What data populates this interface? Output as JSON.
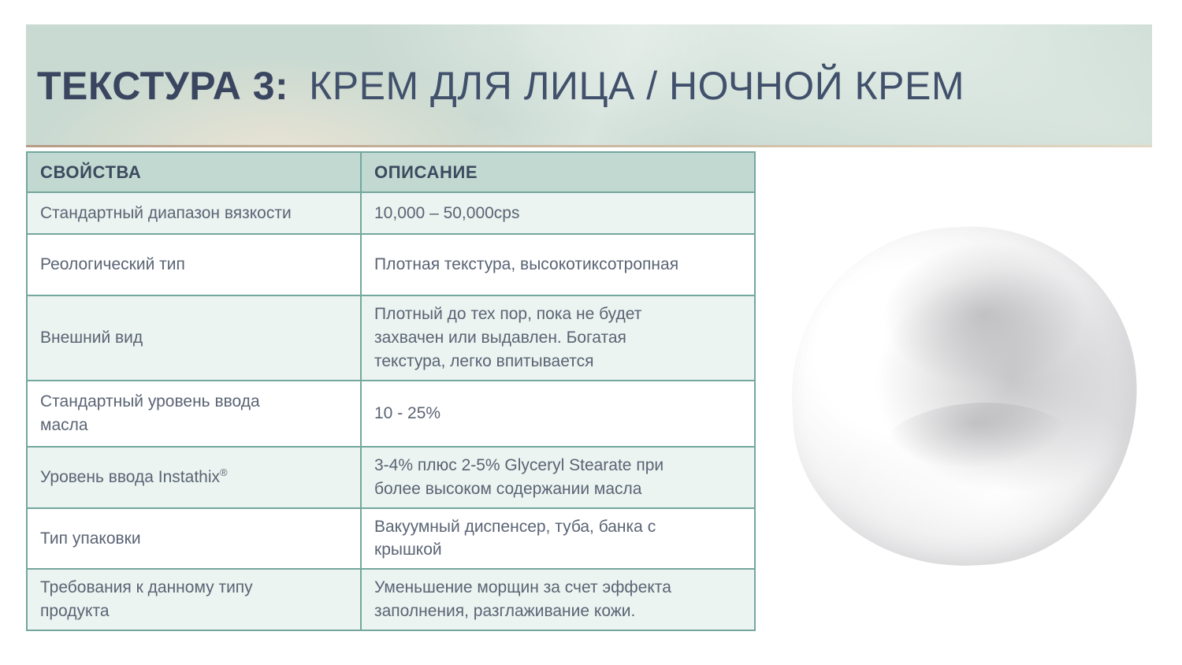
{
  "slide": {
    "title_bold": "ТЕКСТУРА 3:",
    "title_rest": "КРЕМ ДЛЯ ЛИЦА / НОЧНОЙ КРЕМ"
  },
  "table": {
    "headers": [
      "СВОЙСТВА",
      "ОПИСАНИЕ"
    ],
    "rows": [
      {
        "property": "Стандартный диапазон вязкости",
        "description": "10,000 – 50,000cps"
      },
      {
        "property": "Реологический тип",
        "description": "Плотная текстура, высокотиксотропная"
      },
      {
        "property": "Внешний вид",
        "description": "Плотный до тех пор, пока не будет захвачен или выдавлен. Богатая текстура, легко впитывается"
      },
      {
        "property": "Стандартный уровень ввода масла",
        "description": "10 - 25%"
      },
      {
        "property": "Уровень ввода Instathix",
        "property_sup": "®",
        "description": "3-4% плюс 2-5% Glyceryl Stearate при более высоком содержании масла"
      },
      {
        "property": "Тип упаковки",
        "description": "Вакуумный диспенсер, туба, банка с крышкой"
      },
      {
        "property": "Требования к данному типу продукта",
        "description": "Уменьшение морщин за счет эффекта заполнения, разглаживание кожи."
      }
    ]
  },
  "image": {
    "name": "cream-swatch",
    "description": "dollop of white face cream"
  },
  "colors": {
    "banner_background": "#c9dad2",
    "banner_bottom_line": "#b79c85",
    "title_text": "#3a4660",
    "table_border": "#74a79d",
    "header_row_background": "#c2d9d1",
    "header_text": "#3c4a5e",
    "alt_row_background": "#ebf4f0",
    "body_text": "#5a6474"
  }
}
